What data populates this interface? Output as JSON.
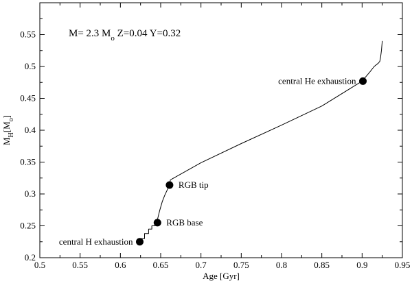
{
  "chart_data": {
    "type": "line",
    "title": "",
    "params": {
      "prefix": "M= 2.3 M",
      "sub": "o",
      "rest": " Z=0.04 Y=0.32"
    },
    "xlabel": "Age [Gyr]",
    "ylabel": {
      "main": "M",
      "sub1": "H",
      "mid": "[M",
      "sub2": "o",
      "end": "]"
    },
    "xlim": [
      0.5,
      0.95
    ],
    "ylim": [
      0.2,
      0.6
    ],
    "grid": false,
    "legend": "none",
    "x_ticks": [
      {
        "value": 0.5,
        "label": "0.5"
      },
      {
        "value": 0.55,
        "label": "0.55"
      },
      {
        "value": 0.6,
        "label": "0.6"
      },
      {
        "value": 0.65,
        "label": "0.65"
      },
      {
        "value": 0.7,
        "label": "0.7"
      },
      {
        "value": 0.75,
        "label": "0.75"
      },
      {
        "value": 0.8,
        "label": "0.8"
      },
      {
        "value": 0.85,
        "label": "0.85"
      },
      {
        "value": 0.9,
        "label": "0.9"
      },
      {
        "value": 0.95,
        "label": "0.95"
      }
    ],
    "y_ticks": [
      {
        "value": 0.2,
        "label": "0.2"
      },
      {
        "value": 0.25,
        "label": "0.25"
      },
      {
        "value": 0.3,
        "label": "0.3"
      },
      {
        "value": 0.35,
        "label": "0.35"
      },
      {
        "value": 0.4,
        "label": "0.4"
      },
      {
        "value": 0.45,
        "label": "0.45"
      },
      {
        "value": 0.5,
        "label": "0.5"
      },
      {
        "value": 0.55,
        "label": "0.55"
      }
    ],
    "series": [
      {
        "color": "#000000",
        "x": [
          0.624,
          0.626,
          0.626,
          0.63,
          0.63,
          0.635,
          0.635,
          0.639,
          0.639,
          0.643,
          0.643,
          0.646,
          0.649,
          0.652,
          0.655,
          0.658,
          0.661,
          0.662,
          0.7,
          0.75,
          0.8,
          0.85,
          0.9,
          0.91,
          0.915,
          0.92,
          0.922,
          0.923,
          0.924,
          0.925
        ],
        "y": [
          0.225,
          0.225,
          0.23,
          0.23,
          0.238,
          0.238,
          0.245,
          0.245,
          0.25,
          0.25,
          0.253,
          0.26,
          0.275,
          0.288,
          0.298,
          0.306,
          0.314,
          0.322,
          0.349,
          0.379,
          0.408,
          0.438,
          0.477,
          0.492,
          0.5,
          0.505,
          0.508,
          0.515,
          0.525,
          0.54
        ]
      }
    ],
    "points": [
      {
        "label": "central H exhaustion",
        "x": 0.624,
        "y": 0.225,
        "label_side": "left"
      },
      {
        "label": "RGB base",
        "x": 0.646,
        "y": 0.255,
        "label_side": "right"
      },
      {
        "label": "RGB tip",
        "x": 0.661,
        "y": 0.314,
        "label_side": "right"
      },
      {
        "label": "central He exhaustion",
        "x": 0.901,
        "y": 0.477,
        "label_side": "left"
      }
    ]
  }
}
